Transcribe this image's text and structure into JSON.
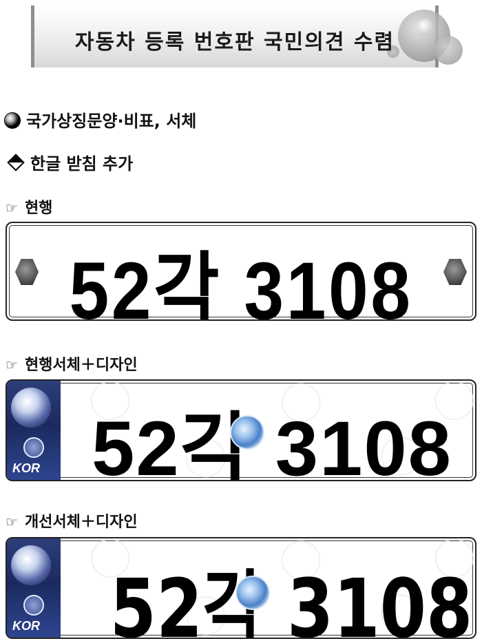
{
  "banner": {
    "title": "자동차 등록 번호판 국민의견 수렴"
  },
  "items": {
    "symbol_line": "국가상징문양·비표, 서체",
    "batchim_line": "한글 받침 추가"
  },
  "sections": [
    {
      "label": "현행",
      "plate_text": "52각 3108"
    },
    {
      "label": "현행서체＋디자인",
      "plate_text": "52각 3108",
      "badge": "KOR"
    },
    {
      "label": "개선서체＋디자인",
      "plate_text": "52각 3108",
      "badge": "KOR"
    }
  ],
  "colors": {
    "strip_blue": "#1b2a5e",
    "emblem_blue": "#4a7fc6"
  },
  "icons": [
    "radio-bullet-icon",
    "diamond-bullet-icon",
    "pointing-hand-icon"
  ]
}
